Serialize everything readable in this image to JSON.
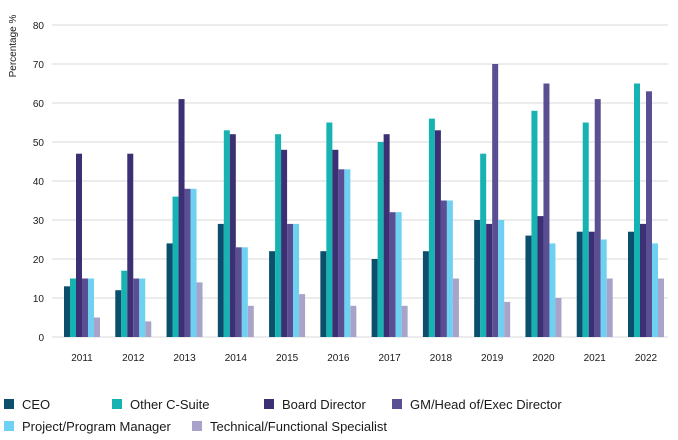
{
  "chart_data": {
    "type": "bar",
    "ylabel": "Percentage %",
    "xlabel": "",
    "ylim": [
      0,
      80
    ],
    "yticks": [
      0,
      10,
      20,
      30,
      40,
      50,
      60,
      70,
      80
    ],
    "grid": true,
    "legend_position": "bottom",
    "categories": [
      "2011",
      "2012",
      "2013",
      "2014",
      "2015",
      "2016",
      "2017",
      "2018",
      "2019",
      "2020",
      "2021",
      "2022"
    ],
    "series": [
      {
        "name": "CEO",
        "color": "#0b4f6c",
        "values": [
          13,
          12,
          24,
          29,
          22,
          22,
          20,
          22,
          30,
          26,
          27,
          27
        ]
      },
      {
        "name": "Other C-Suite",
        "color": "#17b2b2",
        "values": [
          15,
          17,
          36,
          53,
          52,
          55,
          50,
          56,
          47,
          58,
          55,
          65
        ]
      },
      {
        "name": "Board Director",
        "color": "#3c2f73",
        "values": [
          47,
          47,
          61,
          52,
          48,
          48,
          52,
          53,
          29,
          31,
          27,
          29
        ]
      },
      {
        "name": "GM/Head of/Exec Director",
        "color": "#5b4f93",
        "values": [
          15,
          15,
          38,
          23,
          29,
          43,
          32,
          35,
          70,
          65,
          61,
          63
        ]
      },
      {
        "name": "Project/Program Manager",
        "color": "#6fd1f2",
        "values": [
          15,
          15,
          38,
          23,
          29,
          43,
          32,
          35,
          30,
          24,
          25,
          24
        ]
      },
      {
        "name": "Technical/Functional Specialist",
        "color": "#a9a3c9",
        "values": [
          5,
          4,
          14,
          8,
          11,
          8,
          8,
          15,
          9,
          10,
          15,
          15
        ]
      }
    ]
  }
}
